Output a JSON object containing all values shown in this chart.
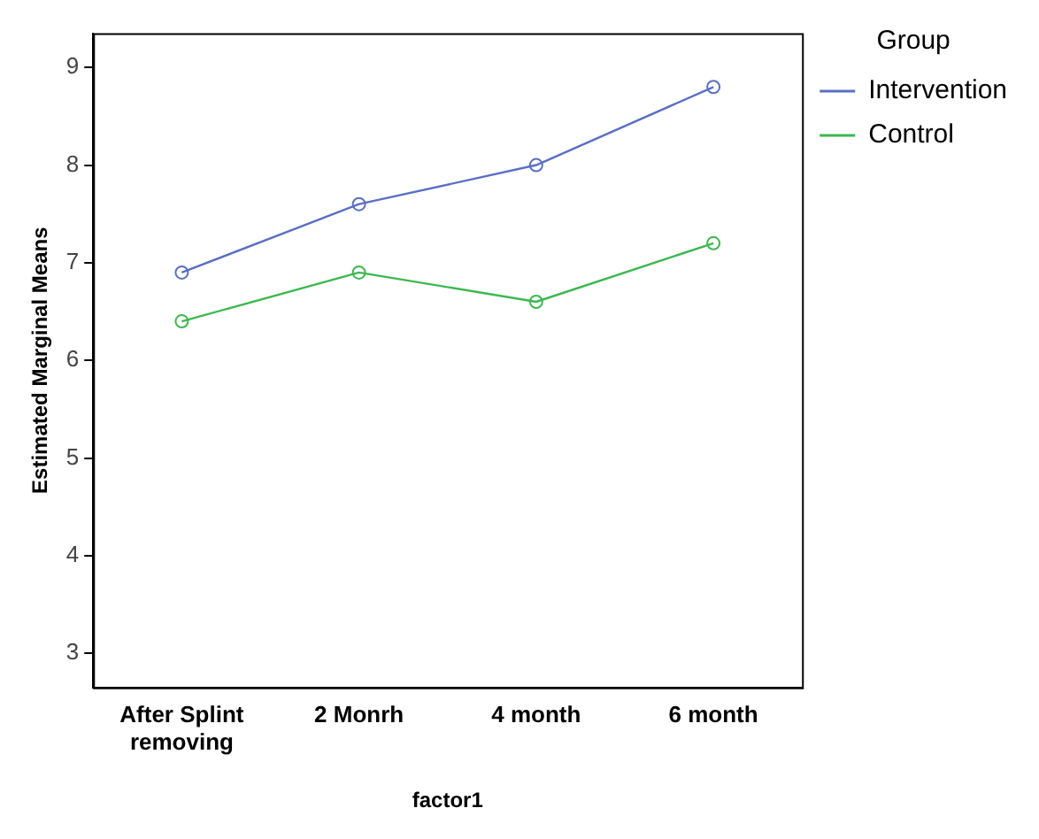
{
  "chart_data": {
    "type": "line",
    "xlabel": "factor1",
    "ylabel": "Estimated Marginal Means",
    "legend_title": "Group",
    "categories": [
      "After Splint removing",
      "2 Monrh",
      "4 month",
      "6 month"
    ],
    "series": [
      {
        "name": "Intervention",
        "color": "#5a6fc4",
        "values": [
          6.9,
          7.6,
          8.0,
          8.8
        ]
      },
      {
        "name": "Control",
        "color": "#3cb84f",
        "values": [
          6.4,
          6.9,
          6.6,
          7.2
        ]
      }
    ],
    "ylim": [
      2.65,
      9.35
    ],
    "yticks": [
      3,
      4,
      5,
      6,
      7,
      8,
      9
    ],
    "grid": false,
    "legend": "top right",
    "marker": "circle",
    "line_style": "solid"
  }
}
